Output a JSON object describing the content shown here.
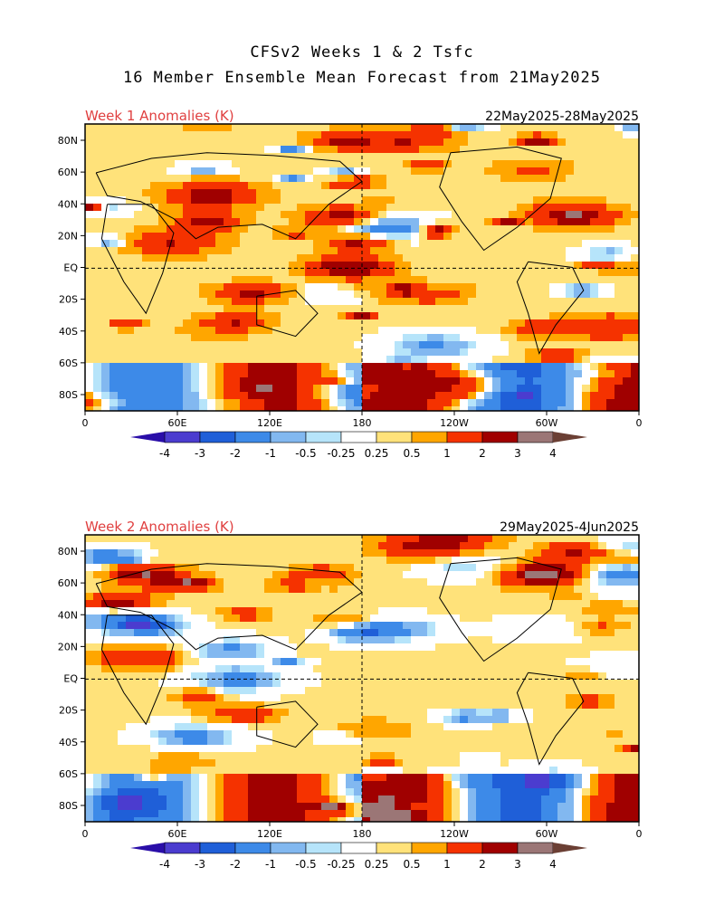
{
  "header": {
    "title": "CFSv2 Weeks 1 & 2 Tsfc",
    "subtitle": "16 Member Ensemble Mean Forecast from 21May2025"
  },
  "panels": [
    {
      "label": "Week 1 Anomalies (K)",
      "dates": "22May2025-28May2025",
      "lat_ticks": [
        "80N",
        "60N",
        "40N",
        "20N",
        "EQ",
        "20S",
        "40S",
        "60S",
        "80S"
      ],
      "lon_ticks": [
        "0",
        "60E",
        "120E",
        "180",
        "120W",
        "60W",
        "0"
      ],
      "colorbar": [
        "-4",
        "-3",
        "-2",
        "-1",
        "-0.5",
        "-0.25",
        "0.25",
        "0.5",
        "1",
        "2",
        "3",
        "4"
      ]
    },
    {
      "label": "Week 2 Anomalies (K)",
      "dates": "29May2025-4Jun2025",
      "lat_ticks": [
        "80N",
        "60N",
        "40N",
        "20N",
        "EQ",
        "20S",
        "40S",
        "60S",
        "80S"
      ],
      "lon_ticks": [
        "0",
        "60E",
        "120E",
        "180",
        "120W",
        "60W",
        "0"
      ],
      "colorbar": [
        "-4",
        "-3",
        "-2",
        "-1",
        "-0.5",
        "-0.25",
        "0.25",
        "0.5",
        "1",
        "2",
        "3",
        "4"
      ]
    }
  ],
  "palette": {
    "label_color": "#e04040",
    "colors": [
      "#2a0ea8",
      "#4b3ccf",
      "#1f5fd8",
      "#3d8ae8",
      "#82b8f0",
      "#b6e4fa",
      "#ffffff",
      "#ffe27a",
      "#ffa600",
      "#f53200",
      "#a00000",
      "#9b7676",
      "#6b3f34"
    ]
  }
}
